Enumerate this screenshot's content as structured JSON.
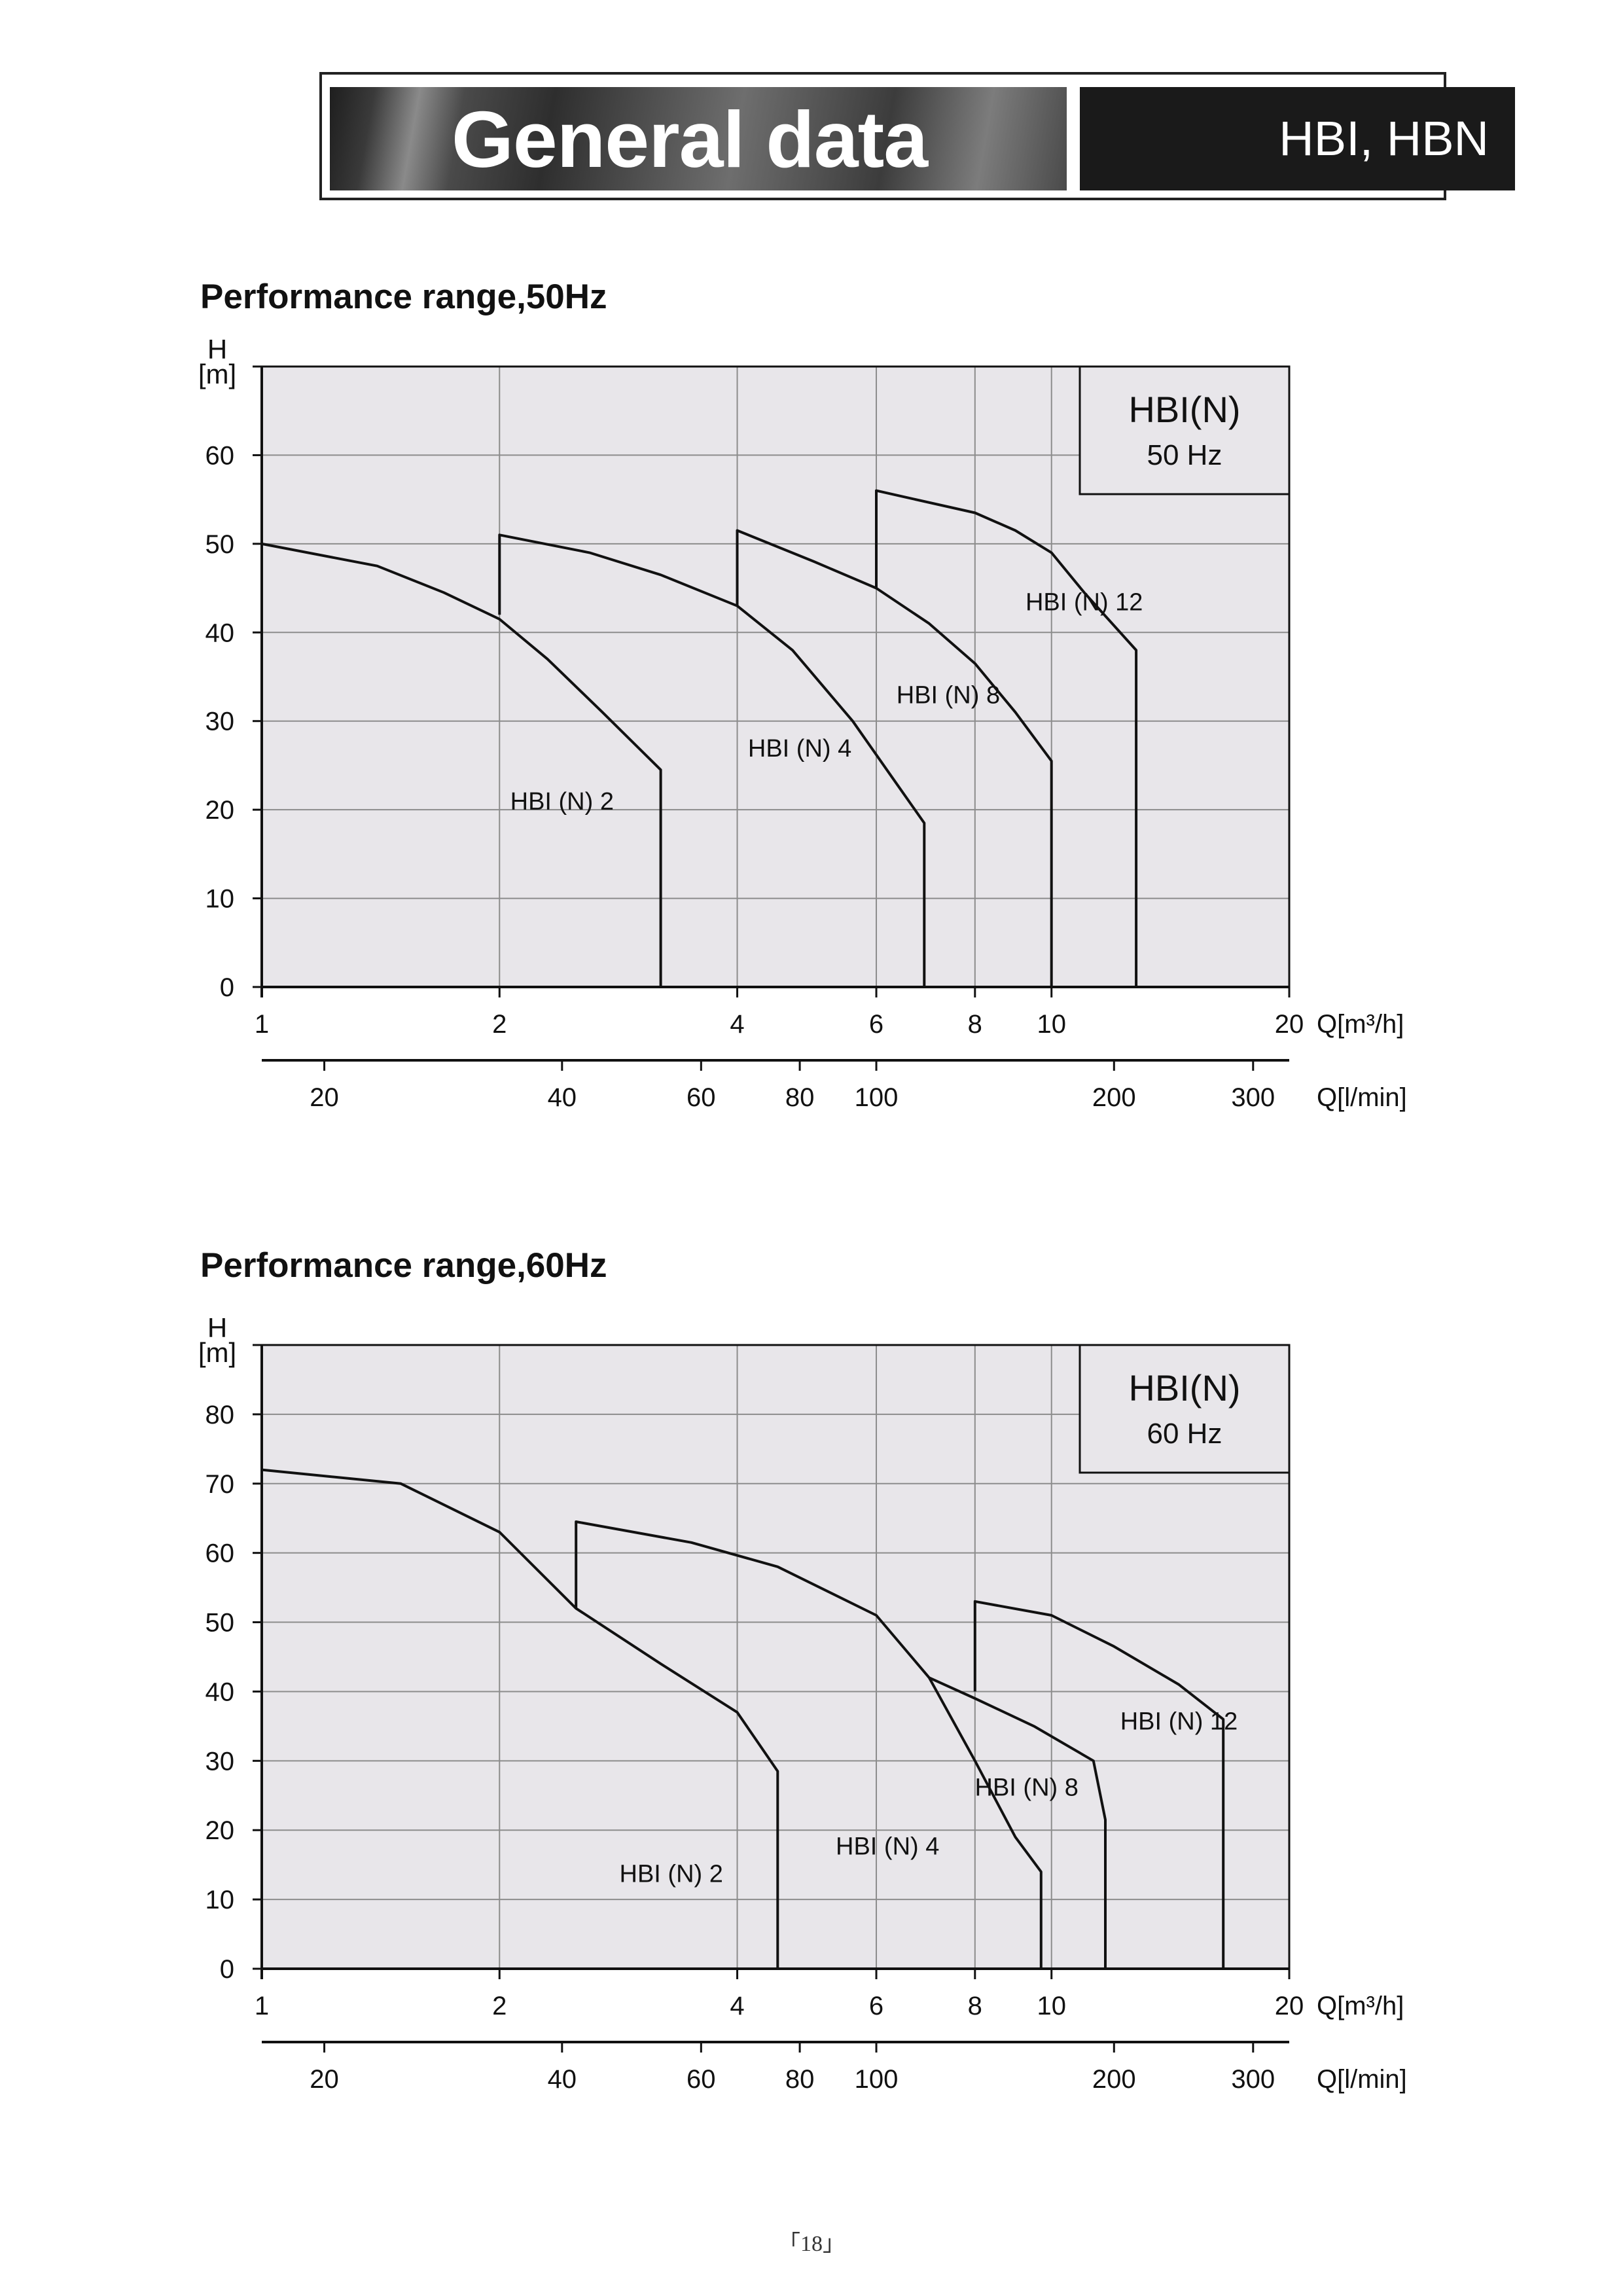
{
  "header": {
    "title": "General data",
    "models": "HBI, HBN"
  },
  "footer": {
    "page_number": "「18」"
  },
  "chart_data": [
    {
      "type": "line",
      "title": "Performance range,50Hz",
      "ylabel_top": "H",
      "ylabel_bottom": "[m]",
      "xlabel": "Q[m³/h]",
      "x2label": "Q[l/min]",
      "xscale": "log",
      "xlim": [
        1,
        20
      ],
      "ylim": [
        0,
        70
      ],
      "xticks": [
        1,
        2,
        4,
        6,
        8,
        10,
        20
      ],
      "x2ticks": [
        20,
        40,
        60,
        80,
        100,
        200,
        300
      ],
      "yticks": [
        0,
        10,
        20,
        30,
        40,
        50,
        60
      ],
      "grid": true,
      "legend_box": {
        "line1": "HBI(N)",
        "line2": "50 Hz",
        "position": "top-right"
      },
      "series": [
        {
          "name": "HBI (N) 2",
          "label_at": [
            2.4,
            20
          ],
          "points": [
            [
              1,
              50
            ],
            [
              1.4,
              47.5
            ],
            [
              1.7,
              44.5
            ],
            [
              2,
              41.5
            ],
            [
              2.3,
              37
            ],
            [
              2.7,
              31
            ],
            [
              3.2,
              24.5
            ],
            [
              3.2,
              0
            ]
          ]
        },
        {
          "name": "HBI (N) 4",
          "label_at": [
            4.8,
            26
          ],
          "points": [
            [
              2,
              42
            ],
            [
              2,
              51
            ],
            [
              2.6,
              49
            ],
            [
              3.2,
              46.5
            ],
            [
              4,
              43
            ],
            [
              4.7,
              38
            ],
            [
              5.6,
              30
            ],
            [
              6.3,
              23.5
            ],
            [
              6.9,
              18.5
            ],
            [
              6.9,
              0
            ]
          ]
        },
        {
          "name": "HBI (N) 8",
          "label_at": [
            7.4,
            32
          ],
          "points": [
            [
              4,
              43
            ],
            [
              4,
              51.5
            ],
            [
              5,
              48
            ],
            [
              6,
              45
            ],
            [
              7,
              41
            ],
            [
              8,
              36.5
            ],
            [
              9,
              31
            ],
            [
              10,
              25.5
            ],
            [
              10,
              0
            ]
          ]
        },
        {
          "name": "HBI (N) 12",
          "label_at": [
            11,
            42.5
          ],
          "points": [
            [
              6,
              45
            ],
            [
              6,
              56
            ],
            [
              8,
              53.5
            ],
            [
              9,
              51.5
            ],
            [
              10,
              49
            ],
            [
              11,
              44.5
            ],
            [
              12.8,
              38
            ],
            [
              12.8,
              0
            ]
          ]
        }
      ]
    },
    {
      "type": "line",
      "title": "Performance range,60Hz",
      "ylabel_top": "H",
      "ylabel_bottom": "[m]",
      "xlabel": "Q[m³/h]",
      "x2label": "Q[l/min]",
      "xscale": "log",
      "xlim": [
        1,
        20
      ],
      "ylim": [
        0,
        90
      ],
      "xticks": [
        1,
        2,
        4,
        6,
        8,
        10,
        20
      ],
      "x2ticks": [
        20,
        40,
        60,
        80,
        100,
        200,
        300
      ],
      "yticks": [
        0,
        10,
        20,
        30,
        40,
        50,
        60,
        70,
        80
      ],
      "grid": true,
      "legend_box": {
        "line1": "HBI(N)",
        "line2": "60 Hz",
        "position": "top-right"
      },
      "series": [
        {
          "name": "HBI (N) 2",
          "label_at": [
            3.3,
            12.5
          ],
          "points": [
            [
              1,
              72
            ],
            [
              1.5,
              70
            ],
            [
              2,
              63
            ],
            [
              2.5,
              52
            ],
            [
              3.2,
              44
            ],
            [
              4,
              37
            ],
            [
              4.5,
              28.5
            ],
            [
              4.5,
              0
            ]
          ]
        },
        {
          "name": "HBI (N) 4",
          "label_at": [
            6.2,
            16.5
          ],
          "points": [
            [
              2.5,
              52
            ],
            [
              2.5,
              64.5
            ],
            [
              3.5,
              61.5
            ],
            [
              4.5,
              58
            ],
            [
              6,
              51
            ],
            [
              7,
              42
            ],
            [
              8,
              30
            ],
            [
              9,
              19
            ],
            [
              9.7,
              14
            ],
            [
              9.7,
              0
            ]
          ]
        },
        {
          "name": "HBI (N) 8",
          "label_at": [
            9.3,
            25
          ],
          "points": [
            [
              7,
              42
            ],
            [
              8,
              39
            ],
            [
              9.5,
              35
            ],
            [
              11.3,
              30
            ],
            [
              11.7,
              21.5
            ],
            [
              11.7,
              0
            ]
          ]
        },
        {
          "name": "HBI (N) 12",
          "label_at": [
            14.5,
            34.5
          ],
          "points": [
            [
              8,
              40
            ],
            [
              8,
              53
            ],
            [
              10,
              51
            ],
            [
              12,
              46.5
            ],
            [
              14.5,
              41
            ],
            [
              16.5,
              36
            ],
            [
              16.5,
              0
            ]
          ]
        }
      ]
    }
  ]
}
